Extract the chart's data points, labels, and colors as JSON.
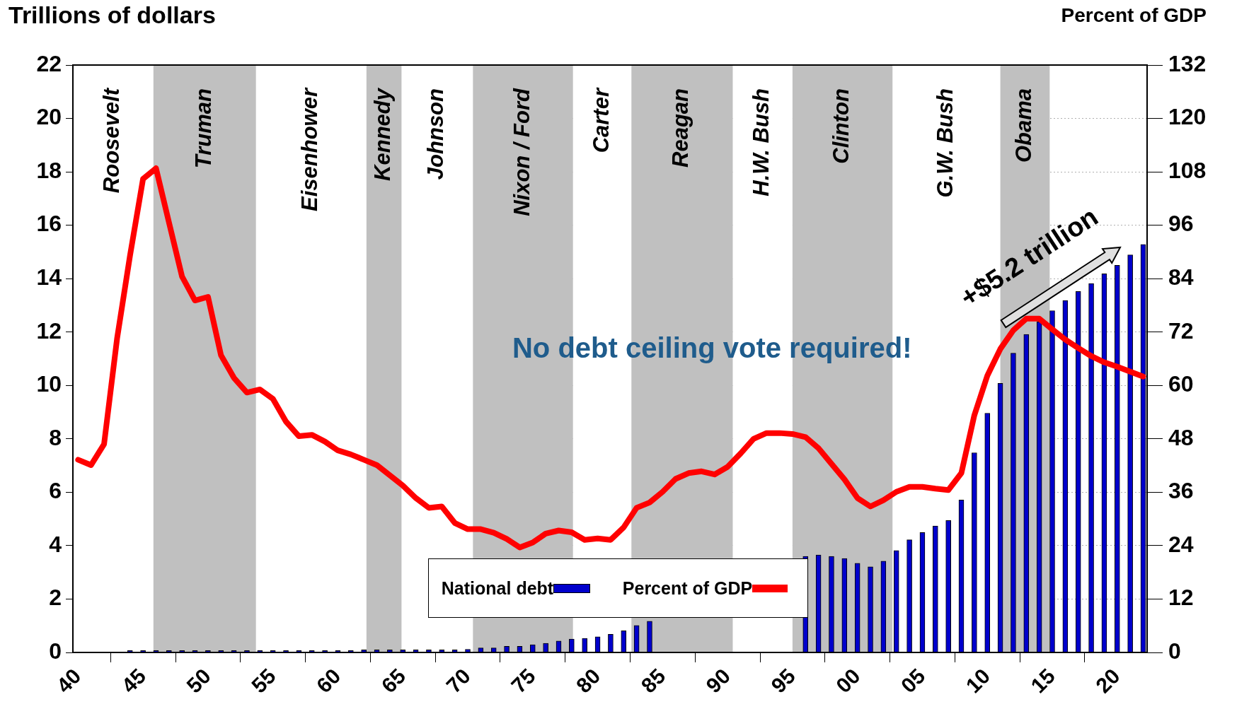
{
  "chart_data": {
    "type": "bar",
    "ylabel": "Trillions of dollars",
    "y2label": "Percent of GDP",
    "annotations": [
      "No debt ceiling vote required!",
      "+$5.2 trillion"
    ],
    "bands": [
      {
        "axis": "x",
        "from": 1939.6,
        "to": 1945.8,
        "label": "Roosevelt",
        "color": "#ffffff"
      },
      {
        "axis": "x",
        "from": 1945.8,
        "to": 1953.7,
        "label": "Truman",
        "color": "#c0c0c0"
      },
      {
        "axis": "x",
        "from": 1953.7,
        "to": 1962.2,
        "label": "Eisenhower",
        "color": "#ffffff"
      },
      {
        "axis": "x",
        "from": 1964.9,
        "to": 1970.4,
        "label": "Johnson",
        "color": "#ffffff"
      },
      {
        "axis": "x",
        "from": 1978.1,
        "to": 1982.6,
        "label": "Carter",
        "color": "#ffffff"
      },
      {
        "axis": "x",
        "from": 1990.4,
        "to": 1995.0,
        "label": "H.W. Bush",
        "color": "#ffffff"
      },
      {
        "axis": "x",
        "from": 2002.7,
        "to": 2011.0,
        "label": "G.W. Bush",
        "color": "#ffffff"
      },
      {
        "axis": "x",
        "from": 1962.2,
        "to": 1964.9,
        "label": "Kennedy",
        "color": "#c0c0c0"
      },
      {
        "axis": "x",
        "from": 1970.4,
        "to": 1978.1,
        "label": "Nixon / Ford",
        "color": "#c0c0c0"
      },
      {
        "axis": "x",
        "from": 1982.6,
        "to": 1990.4,
        "label": "Reagan",
        "color": "#c0c0c0"
      },
      {
        "axis": "x",
        "from": 1995.0,
        "to": 2002.7,
        "label": "Clinton",
        "color": "#c0c0c0"
      },
      {
        "axis": "x",
        "from": 2011.0,
        "to": 2014.8,
        "label": "Obama",
        "color": "#c0c0c0"
      }
    ],
    "x": [
      1940,
      1941,
      1942,
      1943,
      1944,
      1945,
      1946,
      1947,
      1948,
      1949,
      1950,
      1951,
      1952,
      1953,
      1954,
      1955,
      1956,
      1957,
      1958,
      1959,
      1960,
      1961,
      1962,
      1963,
      1964,
      1965,
      1966,
      1967,
      1968,
      1969,
      1970,
      1971,
      1972,
      1973,
      1974,
      1975,
      1976,
      1977,
      1978,
      1979,
      1980,
      1981,
      1982,
      1983,
      1984,
      1985,
      1986,
      1987,
      1988,
      1989,
      1990,
      1991,
      1992,
      1993,
      1994,
      1995,
      1996,
      1997,
      1998,
      1999,
      2000,
      2001,
      2002,
      2003,
      2004,
      2005,
      2006,
      2007,
      2008,
      2009,
      2010,
      2011,
      2012,
      2013,
      2014,
      2015,
      2016,
      2017,
      2018,
      2019,
      2020,
      2021,
      2022
    ],
    "series": [
      {
        "name": "National debt",
        "color": "#0000cc",
        "values": [
          0,
          0,
          0,
          0,
          0.07,
          0.07,
          0.07,
          0.07,
          0.07,
          0.07,
          0.07,
          0.07,
          0.07,
          0.07,
          0.07,
          0.07,
          0.07,
          0.07,
          0.07,
          0.07,
          0.07,
          0.07,
          0.1,
          0.1,
          0.1,
          0.1,
          0.1,
          0.1,
          0.1,
          0.1,
          0.12,
          0.17,
          0.17,
          0.23,
          0.23,
          0.29,
          0.34,
          0.43,
          0.5,
          0.53,
          0.59,
          0.68,
          0.81,
          1.01,
          1.17,
          null,
          null,
          null,
          null,
          null,
          null,
          null,
          null,
          null,
          null,
          null,
          3.6,
          3.65,
          3.6,
          3.52,
          3.34,
          3.21,
          3.42,
          3.82,
          4.22,
          4.49,
          4.74,
          4.94,
          5.71,
          7.48,
          8.96,
          10.08,
          11.21,
          11.91,
          12.38,
          12.8,
          13.18,
          13.52,
          13.82,
          14.18,
          14.5,
          14.89,
          15.28
        ]
      },
      {
        "name": "Percent of GDP",
        "type": "line",
        "axis": "y2",
        "color": "#ff0000",
        "values": [
          43.3,
          42.1,
          46.8,
          70.5,
          89.2,
          106.4,
          108.8,
          96.6,
          84.5,
          79.1,
          79.9,
          66.8,
          61.7,
          58.4,
          59.1,
          57.0,
          51.9,
          48.6,
          48.9,
          47.4,
          45.4,
          44.5,
          43.3,
          42.1,
          39.8,
          37.5,
          34.7,
          32.5,
          32.8,
          29.1,
          27.7,
          27.7,
          26.9,
          25.5,
          23.6,
          24.7,
          26.7,
          27.4,
          27.0,
          25.3,
          25.6,
          25.3,
          28.1,
          32.5,
          33.7,
          36.1,
          39.0,
          40.3,
          40.7,
          40.0,
          41.7,
          44.7,
          48.0,
          49.3,
          49.3,
          49.1,
          48.4,
          45.9,
          42.4,
          38.9,
          34.7,
          32.8,
          34.2,
          36.1,
          37.2,
          37.2,
          36.8,
          36.5,
          40.3,
          53.3,
          62.2,
          68.2,
          72.4,
          75.0,
          75.0,
          72.6,
          70.3,
          68.4,
          66.6,
          65.2,
          64.2,
          63.1,
          62.0
        ]
      }
    ],
    "xlim": [
      1939.6,
      2022.3
    ],
    "xticks": [
      {
        "value": 1940,
        "label": "40"
      },
      {
        "value": 1945,
        "label": "45"
      },
      {
        "value": 1950,
        "label": "50"
      },
      {
        "value": 1955,
        "label": "55"
      },
      {
        "value": 1960,
        "label": "60"
      },
      {
        "value": 1965,
        "label": "65"
      },
      {
        "value": 1970,
        "label": "70"
      },
      {
        "value": 1975,
        "label": "75"
      },
      {
        "value": 1980,
        "label": "80"
      },
      {
        "value": 1985,
        "label": "85"
      },
      {
        "value": 1990,
        "label": "90"
      },
      {
        "value": 1995,
        "label": "95"
      },
      {
        "value": 2000,
        "label": "00"
      },
      {
        "value": 2005,
        "label": "05"
      },
      {
        "value": 2010,
        "label": "10"
      },
      {
        "value": 2015,
        "label": "15"
      },
      {
        "value": 2020,
        "label": "20"
      }
    ],
    "ylim": [
      0,
      22
    ],
    "yticks": [
      0,
      2,
      4,
      6,
      8,
      10,
      12,
      14,
      16,
      18,
      20,
      22
    ],
    "y2lim": [
      0,
      132
    ],
    "y2ticks": [
      0,
      12,
      24,
      36,
      48,
      60,
      72,
      84,
      96,
      108,
      120,
      132
    ],
    "grid": "y",
    "legend": "bottom",
    "marker": "none"
  }
}
